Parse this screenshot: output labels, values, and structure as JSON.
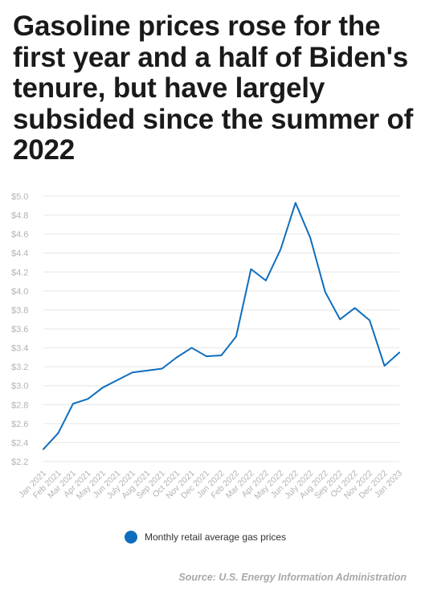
{
  "title": "Gasoline prices rose for the first year and a half of Biden's tenure, but have largely subsided since the summer of 2022",
  "source": "Source: U.S. Energy Information Administration",
  "colors": {
    "line": "#0e6ebd",
    "grid": "#e6e6e6",
    "axis_text": "#b3b3b3"
  },
  "chart_data": {
    "type": "line",
    "categories": [
      "Jan 2021",
      "Feb 2021",
      "Mar 2021",
      "Apr 2021",
      "May 2021",
      "Jun 2021",
      "July 2021",
      "Aug 2021",
      "Sep 2021",
      "Oct 2021",
      "Nov 2021",
      "Dec 2021",
      "Jan 2022",
      "Feb 2022",
      "Mar 2022",
      "Apr 2022",
      "May 2022",
      "Jun 2022",
      "July 2022",
      "Aug 2022",
      "Sep 2022",
      "Oct 2022",
      "Nov 2022",
      "Dec 2022",
      "Jan 2023"
    ],
    "series": [
      {
        "name": "Monthly retail average gas prices",
        "values": [
          2.33,
          2.5,
          2.81,
          2.86,
          2.98,
          3.06,
          3.14,
          3.16,
          3.18,
          3.3,
          3.4,
          3.31,
          3.32,
          3.52,
          4.23,
          4.11,
          4.44,
          4.93,
          4.56,
          3.99,
          3.7,
          3.82,
          3.69,
          3.21,
          3.35
        ]
      }
    ],
    "yticks": [
      "$2.2",
      "$2.4",
      "$2.6",
      "$2.8",
      "$3.0",
      "$3.2",
      "$3.4",
      "$3.6",
      "$3.8",
      "$4.0",
      "$4.2",
      "$4.4",
      "$4.6",
      "$4.8",
      "$5.0"
    ],
    "ylim": [
      2.2,
      5.0
    ],
    "grid": true,
    "legend_position": "bottom",
    "xlabel": "",
    "ylabel": ""
  }
}
